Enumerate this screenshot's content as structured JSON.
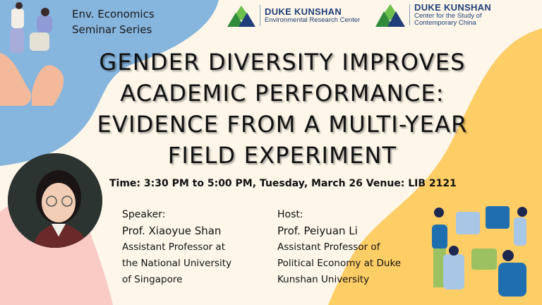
{
  "series": {
    "line1": "Env. Economics",
    "line2": "Seminar Series"
  },
  "logos": [
    {
      "name": "DUKE KUNSHAN",
      "sub": "Environmental Research Center"
    },
    {
      "name": "DUKE KUNSHAN",
      "sub1": "Center for the Study of",
      "sub2": "Contemporary China"
    }
  ],
  "title": {
    "lines": [
      "GENDER DIVERSITY IMPROVES",
      "ACADEMIC PERFORMANCE:",
      "EVIDENCE FROM A MULTI-YEAR",
      "FIELD EXPERIMENT"
    ]
  },
  "time_venue": "Time: 3:30 PM to 5:00 PM, Tuesday, March 26 Venue: LIB 2121",
  "speaker": {
    "label": "Speaker:",
    "name": "Prof. Xiaoyue Shan",
    "role_lines": [
      "Assistant Professor at",
      "the National University",
      "of Singapore"
    ]
  },
  "host": {
    "label": "Host:",
    "name": "Prof. Peiyuan Li",
    "role_lines": [
      "Assistant Professor of",
      "Political Economy at Duke",
      "Kunshan University"
    ]
  },
  "colors": {
    "background": "#fdf6e9",
    "blue_blob": "#86b5de",
    "yellow_blob": "#fdcd66",
    "pink_blob": "#f9cbc4",
    "logo_navy": "#1f3f7a"
  }
}
